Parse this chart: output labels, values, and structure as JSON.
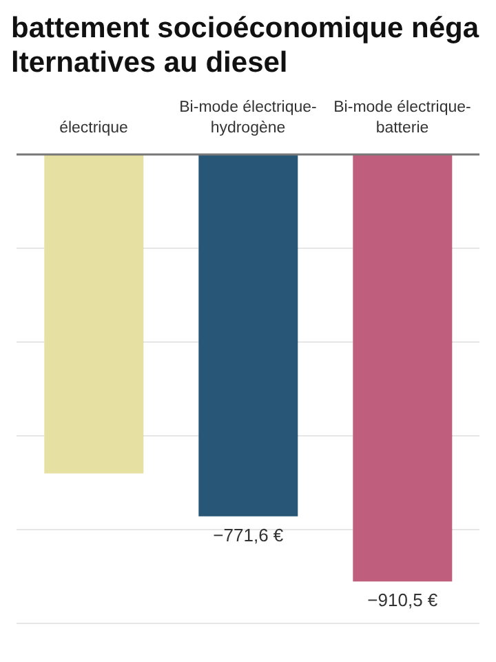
{
  "chart_data": {
    "type": "bar",
    "title": "battement socioéconomique néga\nlternatives au diesel",
    "categories": [
      "électrique",
      "Bi-mode électrique-hydrogène",
      "Bi-mode électrique-batterie"
    ],
    "values": [
      -680,
      -771.6,
      -910.5
    ],
    "colors": [
      "#e6e0a3",
      "#285677",
      "#bf5f7d"
    ],
    "value_labels": [
      null,
      "−771,6 €",
      "−910,5 €"
    ],
    "ylim": [
      -1000,
      0
    ],
    "yticks": [
      {
        "value": 0,
        "label": null
      },
      {
        "value": -200,
        "label": null
      },
      {
        "value": -400,
        "label": null
      },
      {
        "value": -600,
        "label": null
      },
      {
        "value": -800,
        "label": null
      },
      {
        "value": -1000,
        "label": null
      }
    ],
    "grid": "y",
    "tick_labels": "x"
  }
}
